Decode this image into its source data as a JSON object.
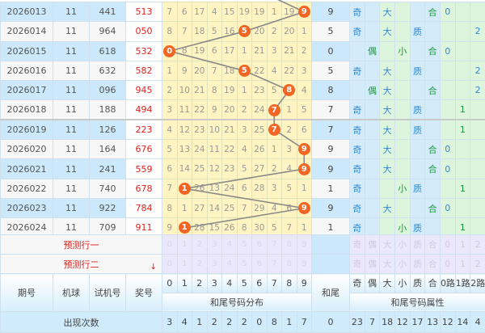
{
  "colors": {
    "hit_ball": "#f26522",
    "prize": "#e0201b",
    "attr_blue": "#2f8ad6",
    "attr_green": "#1a9a3a"
  },
  "rows": [
    {
      "period": "2026013",
      "ball": "11",
      "test": "441",
      "prize": "513",
      "dist": [
        "7",
        "6",
        "17",
        "4",
        "15",
        "19",
        "19",
        "1",
        "19",
        "9"
      ],
      "hit": 9,
      "tail": "9",
      "attrs": [
        "奇",
        "",
        "大",
        "",
        "",
        "合",
        "0",
        "",
        ""
      ]
    },
    {
      "period": "2026014",
      "ball": "11",
      "test": "964",
      "prize": "050",
      "dist": [
        "8",
        "7",
        "18",
        "5",
        "16",
        "5",
        "20",
        "2",
        "20",
        "1"
      ],
      "hit": 5,
      "tail": "5",
      "attrs": [
        "奇",
        "",
        "大",
        "",
        "质",
        "",
        "",
        "",
        "2"
      ]
    },
    {
      "period": "2026015",
      "ball": "11",
      "test": "618",
      "prize": "532",
      "dist": [
        "0",
        "8",
        "19",
        "6",
        "17",
        "1",
        "21",
        "3",
        "21",
        "2"
      ],
      "hit": 0,
      "tail": "0",
      "attrs": [
        "",
        "偶",
        "",
        "小",
        "",
        "合",
        "0",
        "",
        ""
      ]
    },
    {
      "period": "2026016",
      "ball": "11",
      "test": "632",
      "prize": "582",
      "dist": [
        "1",
        "9",
        "20",
        "7",
        "18",
        "5",
        "22",
        "4",
        "22",
        "3"
      ],
      "hit": 5,
      "tail": "5",
      "attrs": [
        "奇",
        "",
        "大",
        "",
        "质",
        "",
        "",
        "",
        "2"
      ]
    },
    {
      "period": "2026017",
      "ball": "11",
      "test": "096",
      "prize": "945",
      "dist": [
        "2",
        "10",
        "21",
        "8",
        "19",
        "1",
        "23",
        "5",
        "8",
        "4"
      ],
      "hit": 8,
      "tail": "8",
      "attrs": [
        "",
        "偶",
        "大",
        "",
        "",
        "合",
        "",
        "",
        "2"
      ]
    },
    {
      "period": "2026018",
      "ball": "11",
      "test": "188",
      "prize": "494",
      "dist": [
        "3",
        "11",
        "22",
        "9",
        "20",
        "2",
        "24",
        "7",
        "1",
        "5"
      ],
      "hit": 7,
      "tail": "7",
      "attrs": [
        "奇",
        "",
        "大",
        "",
        "质",
        "",
        "",
        "1",
        ""
      ]
    },
    {
      "period": "2026019",
      "ball": "11",
      "test": "126",
      "prize": "223",
      "dist": [
        "4",
        "12",
        "23",
        "10",
        "21",
        "3",
        "25",
        "7",
        "2",
        "6"
      ],
      "hit": 7,
      "tail": "7",
      "attrs": [
        "奇",
        "",
        "大",
        "",
        "质",
        "",
        "",
        "1",
        ""
      ]
    },
    {
      "period": "2026020",
      "ball": "11",
      "test": "164",
      "prize": "676",
      "dist": [
        "5",
        "13",
        "24",
        "11",
        "22",
        "4",
        "26",
        "1",
        "3",
        "9"
      ],
      "hit": 9,
      "tail": "9",
      "attrs": [
        "奇",
        "",
        "大",
        "",
        "",
        "合",
        "0",
        "",
        ""
      ]
    },
    {
      "period": "2026021",
      "ball": "11",
      "test": "241",
      "prize": "559",
      "dist": [
        "6",
        "14",
        "25",
        "12",
        "23",
        "5",
        "27",
        "2",
        "4",
        "9"
      ],
      "hit": 9,
      "tail": "9",
      "attrs": [
        "奇",
        "",
        "大",
        "",
        "",
        "合",
        "0",
        "",
        ""
      ]
    },
    {
      "period": "2026022",
      "ball": "11",
      "test": "740",
      "prize": "678",
      "dist": [
        "7",
        "1",
        "26",
        "13",
        "24",
        "6",
        "28",
        "3",
        "5",
        "1"
      ],
      "hit": 1,
      "tail": "1",
      "attrs": [
        "奇",
        "",
        "",
        "小",
        "质",
        "",
        "",
        "1",
        ""
      ]
    },
    {
      "period": "2026023",
      "ball": "11",
      "test": "922",
      "prize": "784",
      "dist": [
        "8",
        "1",
        "27",
        "14",
        "25",
        "7",
        "29",
        "4",
        "6",
        "9"
      ],
      "hit": 9,
      "tail": "9",
      "attrs": [
        "奇",
        "",
        "大",
        "",
        "",
        "合",
        "0",
        "",
        ""
      ]
    },
    {
      "period": "2026024",
      "ball": "11",
      "test": "709",
      "prize": "911",
      "dist": [
        "9",
        "1",
        "28",
        "15",
        "26",
        "8",
        "30",
        "5",
        "7",
        "1"
      ],
      "hit": 1,
      "tail": "1",
      "attrs": [
        "奇",
        "",
        "",
        "小",
        "质",
        "",
        "",
        "1",
        ""
      ]
    }
  ],
  "predict": {
    "row1": "预测行一",
    "row2": "预测行二",
    "digits": [
      "0",
      "1",
      "2",
      "3",
      "4",
      "5",
      "6",
      "7",
      "8",
      "9"
    ],
    "attrs": [
      "奇",
      "偶",
      "大",
      "小",
      "质",
      "合",
      "0",
      "1",
      "2"
    ]
  },
  "header": {
    "period": "期号",
    "ball": "机球",
    "test": "试机号",
    "prize": "奖号",
    "digits": [
      "0",
      "1",
      "2",
      "3",
      "4",
      "5",
      "6",
      "7",
      "8",
      "9"
    ],
    "dist_title": "和尾号码分布",
    "tail": "和尾",
    "attrs": [
      "奇",
      "偶",
      "大",
      "小",
      "质",
      "合",
      "0路",
      "1路",
      "2路"
    ],
    "attr_title": "和尾号码属性"
  },
  "counts": {
    "label": "出现次数",
    "digits": [
      "3",
      "4",
      "1",
      "2",
      "2",
      "2",
      "0",
      "8",
      "1",
      "7"
    ],
    "tail": "0",
    "attrs": [
      "23",
      "7",
      "18",
      "12",
      "17",
      "13",
      "12",
      "14",
      "4"
    ]
  }
}
